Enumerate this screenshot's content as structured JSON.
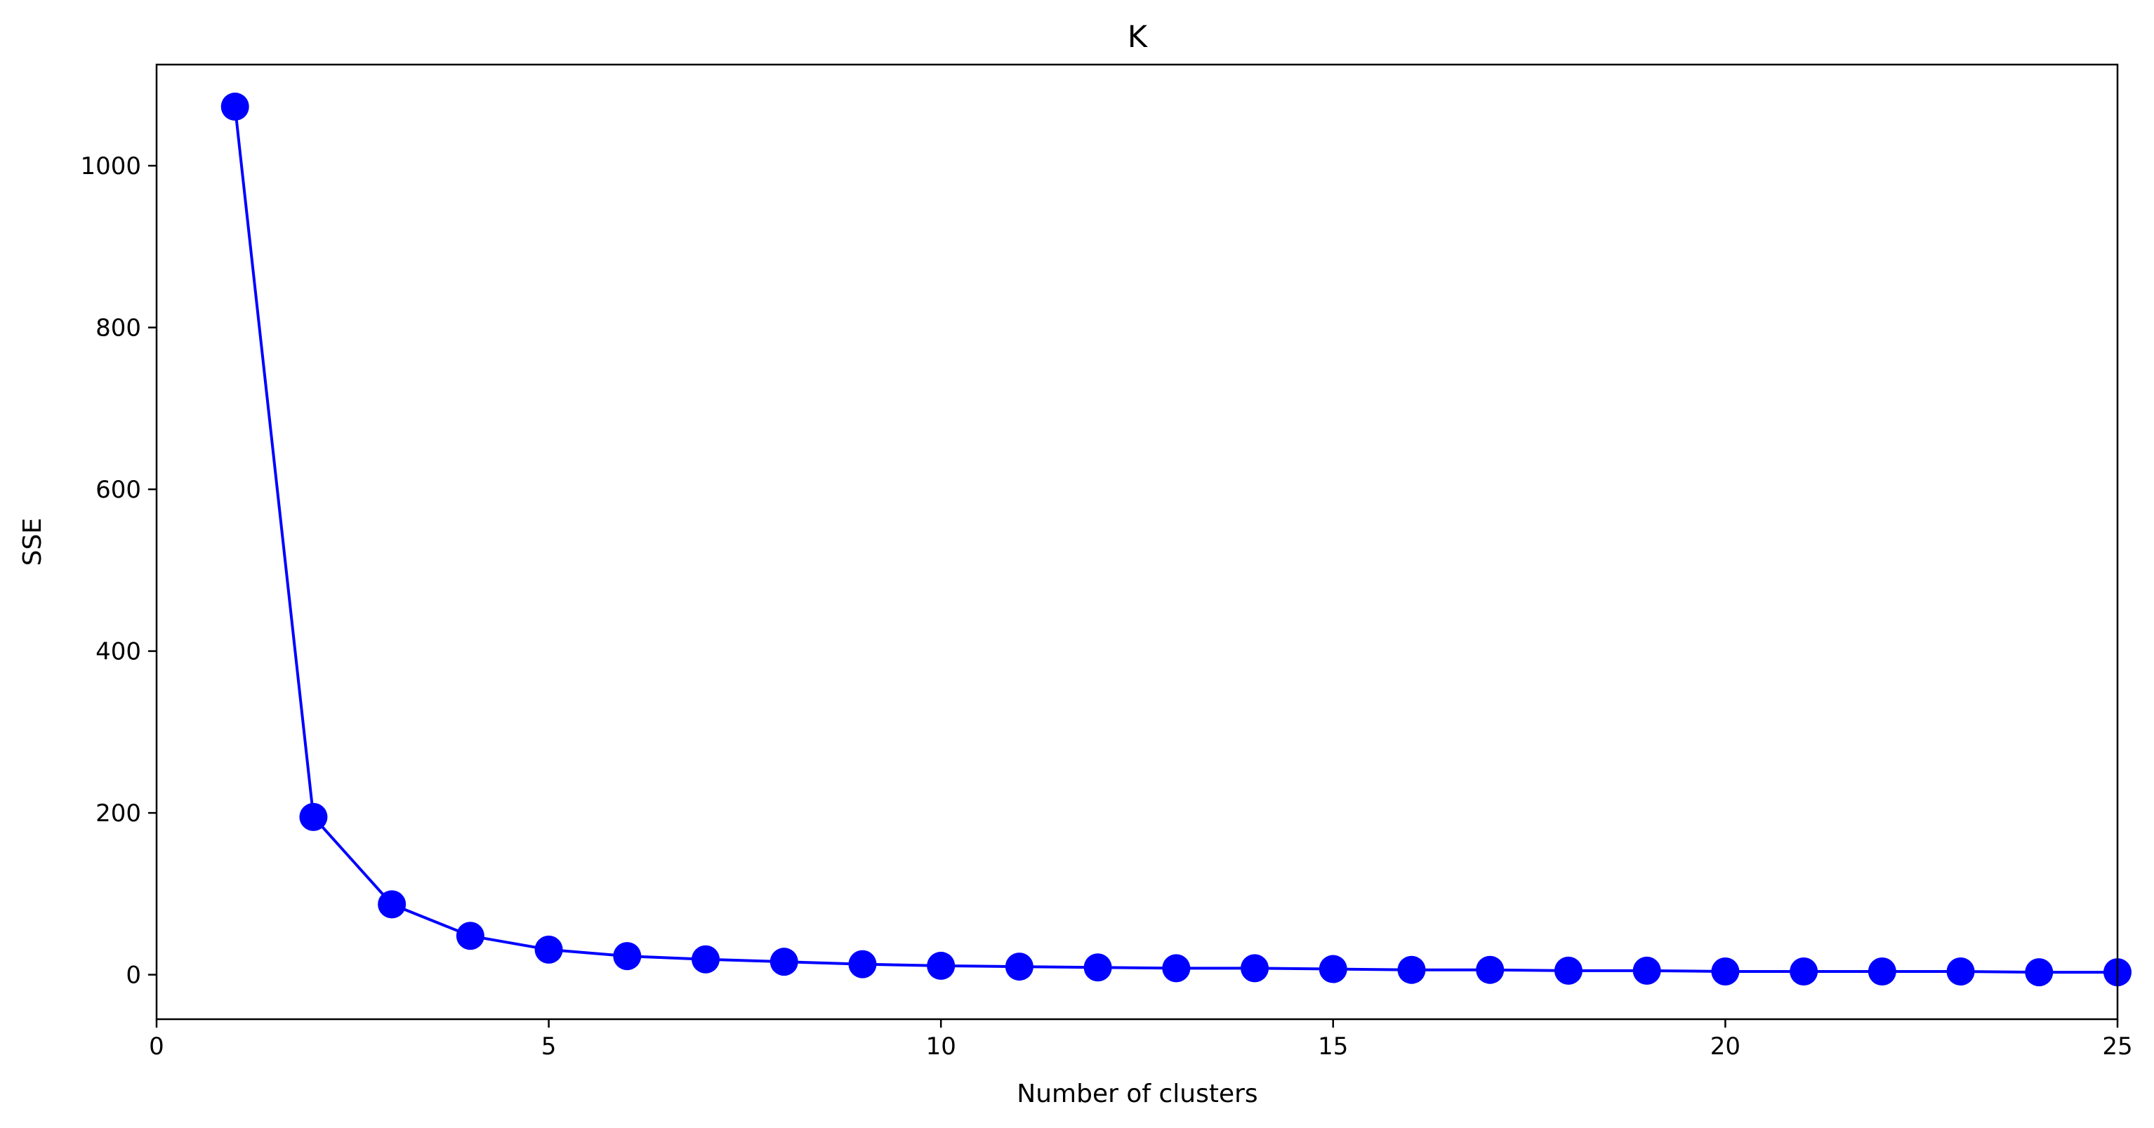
{
  "chart_data": {
    "type": "line",
    "title": "K",
    "xlabel": "Number of clusters",
    "ylabel": "SSE",
    "xlim": [
      0,
      25
    ],
    "ylim": [
      -55,
      1125
    ],
    "xticks": [
      0,
      5,
      10,
      15,
      20,
      25
    ],
    "yticks": [
      0,
      200,
      400,
      600,
      800,
      1000
    ],
    "grid": false,
    "legend": "none",
    "series": [
      {
        "color": "#0000ff",
        "marker": "circle",
        "x": [
          1,
          2,
          3,
          4,
          5,
          6,
          7,
          8,
          9,
          10,
          11,
          12,
          13,
          14,
          15,
          16,
          17,
          18,
          19,
          20,
          21,
          22,
          23,
          24,
          25
        ],
        "y": [
          1073,
          195,
          87,
          48,
          31,
          23,
          19,
          16,
          13,
          11,
          10,
          9,
          8,
          8,
          7,
          6,
          6,
          5,
          5,
          4,
          4,
          4,
          4,
          3,
          3
        ]
      }
    ]
  }
}
